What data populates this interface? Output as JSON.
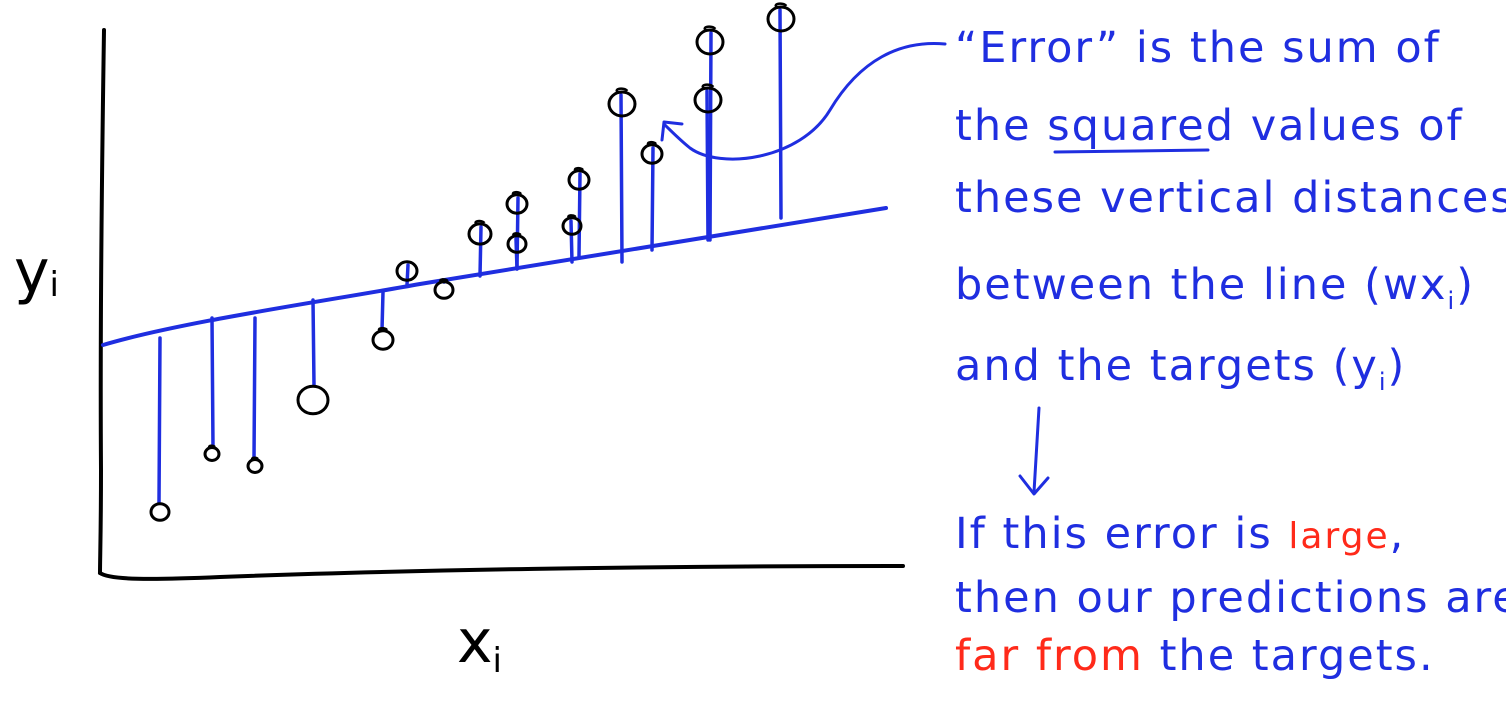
{
  "axes": {
    "y_label": "y",
    "y_sub": "i",
    "x_label": "x",
    "x_sub": "i"
  },
  "note": {
    "line1_quote_open": "“",
    "line1_word": "Error",
    "line1_quote_close": "”",
    "line1_rest": " is the sum of",
    "line2_pre": "the ",
    "line2_underlined": "squared",
    "line2_post": " values of",
    "line3": "these vertical distances",
    "line4_pre": "between the line (wx",
    "line4_sub": "i",
    "line4_post": ")",
    "line5_pre": "and the targets (y",
    "line5_sub": "i",
    "line5_post": ")"
  },
  "conclusion": {
    "line1_pre": "If this error is ",
    "line1_red": "large",
    "line1_post": ",",
    "line2": "then our predictions are",
    "line3_red": "far from",
    "line3_post": " the targets."
  },
  "colors": {
    "ink_black": "#000000",
    "ink_blue": "#1f2ee0",
    "ink_red": "#ff2a1a"
  }
}
